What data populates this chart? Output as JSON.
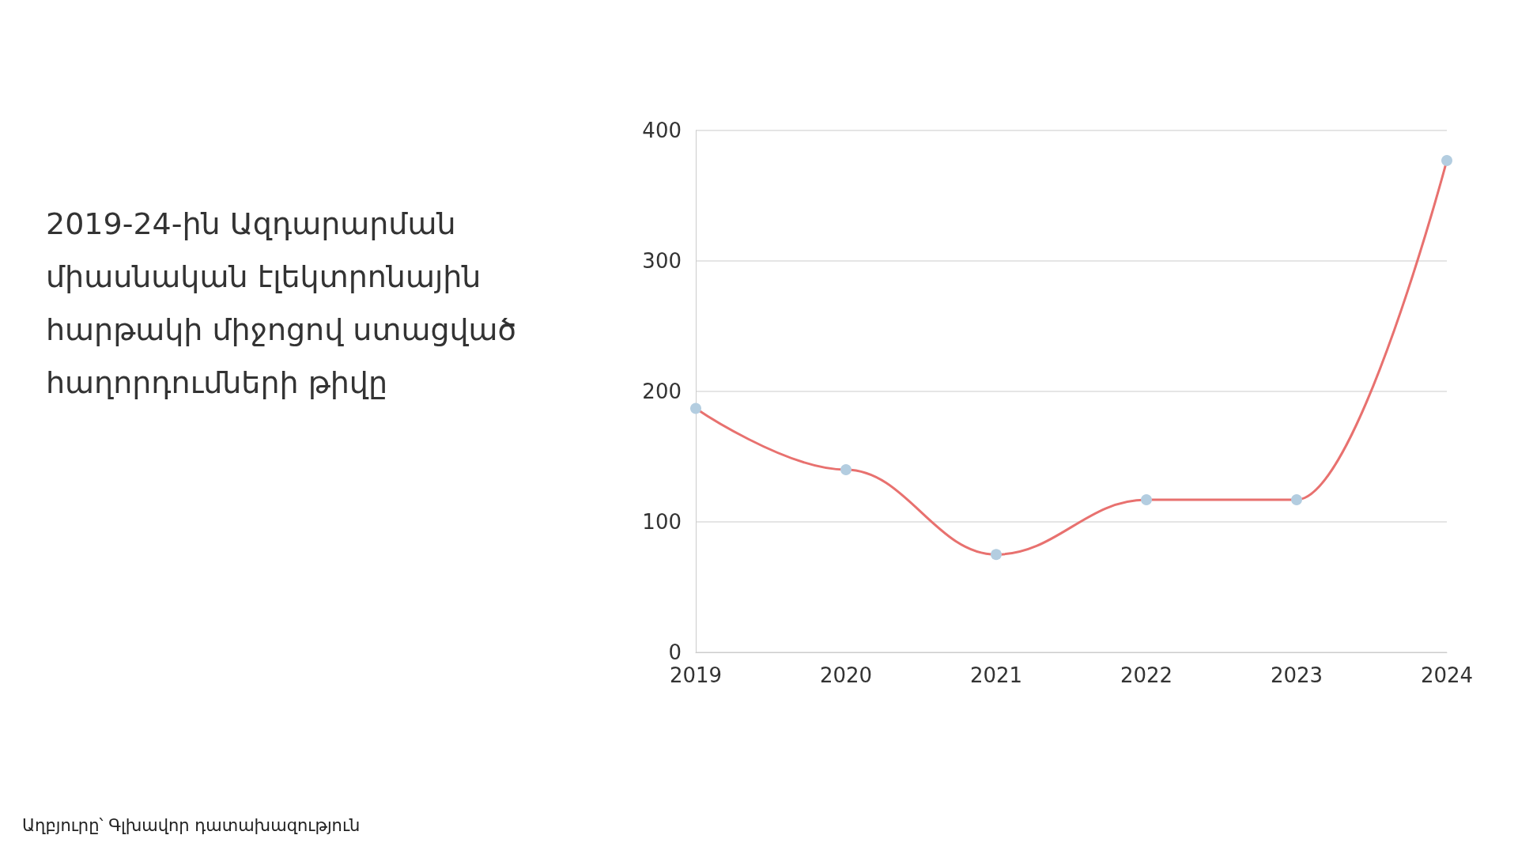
{
  "chart_data": {
    "type": "line",
    "title": "2019-24-ին Ազդարարման միասնական էլեկտրոնային հարթակի միջոցով ստացված հաղորդումների թիվը",
    "annotations": [
      "Աղբյուրը՝ Գլխավոր դատախազություն"
    ],
    "categories": [
      "2019",
      "2020",
      "2021",
      "2022",
      "2023",
      "2024"
    ],
    "series": [
      {
        "color": "#e8716f",
        "colors": [
          "#b3cde0",
          "#b3cde0",
          "#b3cde0",
          "#b3cde0",
          "#b3cde0",
          "#b3cde0"
        ],
        "values": [
          187,
          140,
          75,
          117,
          117,
          377
        ]
      }
    ],
    "ylim": [
      0,
      400
    ],
    "yticks": [
      0,
      100,
      200,
      300,
      400
    ],
    "grid": "y",
    "marker": "circle",
    "line_style": "solid"
  }
}
